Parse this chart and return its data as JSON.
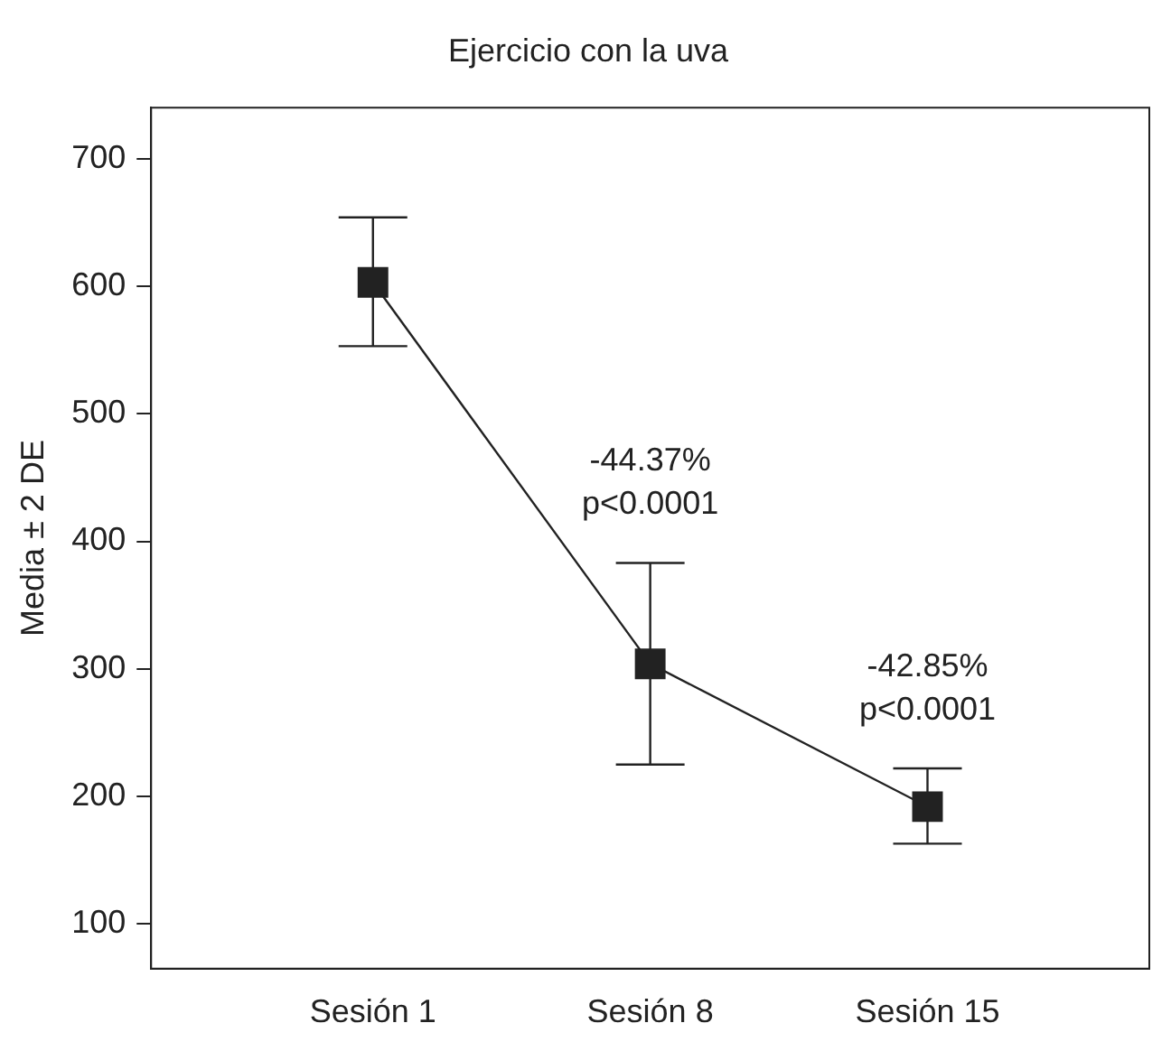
{
  "chart_data": {
    "type": "line",
    "title": "Ejercicio con la uva",
    "ylabel": "Media ± 2 DE",
    "categories": [
      "Sesión 1",
      "Sesión 8",
      "Sesión 15"
    ],
    "series": [
      {
        "color": "#222222",
        "values": [
          603,
          304,
          192
        ],
        "errors": [
          [
            553,
            654
          ],
          [
            225,
            383
          ],
          [
            163,
            222
          ]
        ]
      }
    ],
    "ylim": [
      65,
      740
    ],
    "yticks": [
      100,
      200,
      300,
      400,
      500,
      600,
      700
    ],
    "grid": false,
    "legend": false,
    "marker": "square",
    "line_style": "solid",
    "annotations": [
      "-44.37%\np<0.0001",
      "-42.85%\np<0.0001"
    ]
  }
}
